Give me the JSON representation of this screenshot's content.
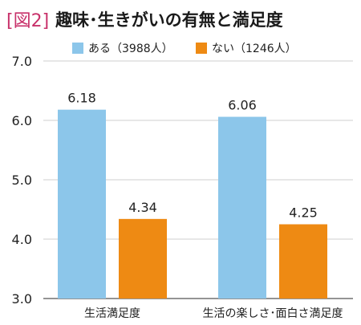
{
  "figure_label": "[図2]",
  "title": "趣味･生きがいの有無と満足度",
  "chart_data": {
    "type": "bar",
    "categories": [
      "生活満足度",
      "生活の楽しさ･面白さ満足度"
    ],
    "series": [
      {
        "name": "ある（3988人）",
        "values": [
          6.18,
          6.06
        ],
        "color": "#8cc6ea"
      },
      {
        "name": "ない（1246人）",
        "values": [
          4.34,
          4.25
        ],
        "color": "#ee8a13"
      }
    ],
    "data_labels": [
      [
        "6.18",
        "6.06"
      ],
      [
        "4.34",
        "4.25"
      ]
    ],
    "ylim": [
      3.0,
      7.0
    ],
    "yticks": [
      "3.0",
      "4.0",
      "5.0",
      "6.0",
      "7.0"
    ],
    "grid": true,
    "legend_position": "top"
  }
}
